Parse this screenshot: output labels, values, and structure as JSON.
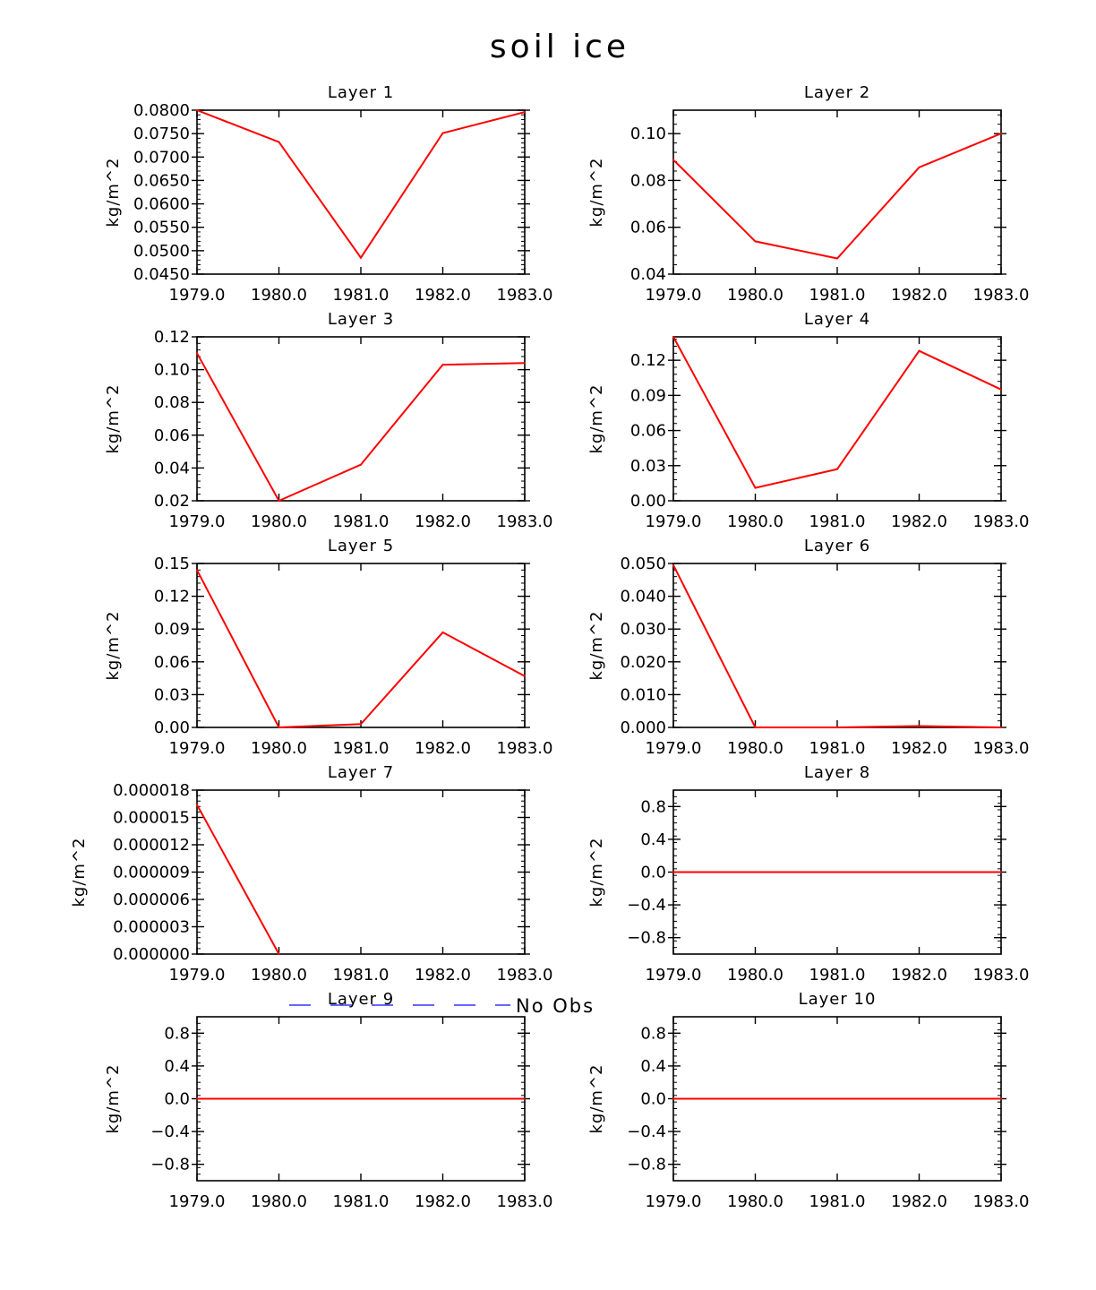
{
  "figure_title": "soil ice",
  "legend": {
    "label": "No Obs",
    "color": "#3333ff"
  },
  "series_color": "#ff0000",
  "chart_data": [
    {
      "type": "line",
      "title": "Layer 1",
      "xlabel": "",
      "ylabel": "kg/m^2",
      "x": [
        1979,
        1980,
        1981,
        1982,
        1983
      ],
      "values": [
        0.08,
        0.0732,
        0.0485,
        0.0751,
        0.0796
      ],
      "xlim": [
        1979,
        1983
      ],
      "ylim": [
        0.045,
        0.08
      ],
      "xticks": [
        "1979.0",
        "1980.0",
        "1981.0",
        "1982.0",
        "1983.0"
      ],
      "yticks": [
        "0.0800",
        "0.0750",
        "0.0700",
        "0.0650",
        "0.0600",
        "0.0550",
        "0.0500",
        "0.0450"
      ],
      "ytick_values": [
        0.08,
        0.075,
        0.07,
        0.065,
        0.06,
        0.055,
        0.05,
        0.045
      ]
    },
    {
      "type": "line",
      "title": "Layer 2",
      "xlabel": "",
      "ylabel": "kg/m^2",
      "x": [
        1979,
        1980,
        1981,
        1982,
        1983
      ],
      "values": [
        0.0888,
        0.054,
        0.0467,
        0.0856,
        0.1
      ],
      "xlim": [
        1979,
        1983
      ],
      "ylim": [
        0.04,
        0.11
      ],
      "xticks": [
        "1979.0",
        "1980.0",
        "1981.0",
        "1982.0",
        "1983.0"
      ],
      "yticks": [
        "0.10",
        "0.08",
        "0.06",
        "0.04"
      ],
      "ytick_values": [
        0.1,
        0.08,
        0.06,
        0.04
      ]
    },
    {
      "type": "line",
      "title": "Layer 3",
      "xlabel": "",
      "ylabel": "kg/m^2",
      "x": [
        1979,
        1980,
        1981,
        1982,
        1983
      ],
      "values": [
        0.11,
        0.02,
        0.042,
        0.103,
        0.104
      ],
      "xlim": [
        1979,
        1983
      ],
      "ylim": [
        0.02,
        0.12
      ],
      "xticks": [
        "1979.0",
        "1980.0",
        "1981.0",
        "1982.0",
        "1983.0"
      ],
      "yticks": [
        "0.12",
        "0.10",
        "0.08",
        "0.06",
        "0.04",
        "0.02"
      ],
      "ytick_values": [
        0.12,
        0.1,
        0.08,
        0.06,
        0.04,
        0.02
      ]
    },
    {
      "type": "line",
      "title": "Layer 4",
      "xlabel": "",
      "ylabel": "kg/m^2",
      "x": [
        1979,
        1980,
        1981,
        1982,
        1983
      ],
      "values": [
        0.14,
        0.011,
        0.027,
        0.128,
        0.095
      ],
      "xlim": [
        1979,
        1983
      ],
      "ylim": [
        0.0,
        0.14
      ],
      "xticks": [
        "1979.0",
        "1980.0",
        "1981.0",
        "1982.0",
        "1983.0"
      ],
      "yticks": [
        "0.12",
        "0.09",
        "0.06",
        "0.03",
        "0.00"
      ],
      "ytick_values": [
        0.12,
        0.09,
        0.06,
        0.03,
        0.0
      ]
    },
    {
      "type": "line",
      "title": "Layer 5",
      "xlabel": "",
      "ylabel": "kg/m^2",
      "x": [
        1979,
        1980,
        1981,
        1982,
        1983
      ],
      "values": [
        0.144,
        0.0,
        0.003,
        0.087,
        0.047
      ],
      "xlim": [
        1979,
        1983
      ],
      "ylim": [
        0.0,
        0.15
      ],
      "xticks": [
        "1979.0",
        "1980.0",
        "1981.0",
        "1982.0",
        "1983.0"
      ],
      "yticks": [
        "0.15",
        "0.12",
        "0.09",
        "0.06",
        "0.03",
        "0.00"
      ],
      "ytick_values": [
        0.15,
        0.12,
        0.09,
        0.06,
        0.03,
        0.0
      ]
    },
    {
      "type": "line",
      "title": "Layer 6",
      "xlabel": "",
      "ylabel": "kg/m^2",
      "x": [
        1979,
        1980,
        1981,
        1982,
        1983
      ],
      "values": [
        0.0495,
        0.0,
        0.0,
        0.0004,
        0.0
      ],
      "xlim": [
        1979,
        1983
      ],
      "ylim": [
        0.0,
        0.05
      ],
      "xticks": [
        "1979.0",
        "1980.0",
        "1981.0",
        "1982.0",
        "1983.0"
      ],
      "yticks": [
        "0.050",
        "0.040",
        "0.030",
        "0.020",
        "0.010",
        "0.000"
      ],
      "ytick_values": [
        0.05,
        0.04,
        0.03,
        0.02,
        0.01,
        0.0
      ]
    },
    {
      "type": "line",
      "title": "Layer 7",
      "xlabel": "",
      "ylabel": "kg/m^2",
      "x": [
        1979,
        1980
      ],
      "values": [
        1.64e-05,
        0.0
      ],
      "xlim": [
        1979,
        1983
      ],
      "ylim": [
        0.0,
        1.8e-05
      ],
      "xticks": [
        "1979.0",
        "1980.0",
        "1981.0",
        "1982.0",
        "1983.0"
      ],
      "yticks": [
        "0.000018",
        "0.000015",
        "0.000012",
        "0.000009",
        "0.000006",
        "0.000003",
        "0.000000"
      ],
      "ytick_values": [
        1.8e-05,
        1.5e-05,
        1.2e-05,
        9e-06,
        6e-06,
        3e-06,
        0.0
      ]
    },
    {
      "type": "line",
      "title": "Layer 8",
      "xlabel": "",
      "ylabel": "kg/m^2",
      "x": [
        1979,
        1980,
        1981,
        1982,
        1983
      ],
      "values": [
        0,
        0,
        0,
        0,
        0
      ],
      "xlim": [
        1979,
        1983
      ],
      "ylim": [
        -1.0,
        1.0
      ],
      "xticks": [
        "1979.0",
        "1980.0",
        "1981.0",
        "1982.0",
        "1983.0"
      ],
      "yticks": [
        "0.8",
        "0.4",
        "0.0",
        "−0.4",
        "−0.8"
      ],
      "ytick_values": [
        0.8,
        0.4,
        0.0,
        -0.4,
        -0.8
      ]
    },
    {
      "type": "line",
      "title": "Layer 9",
      "xlabel": "",
      "ylabel": "kg/m^2",
      "x": [
        1979,
        1980,
        1981,
        1982,
        1983
      ],
      "values": [
        0,
        0,
        0,
        0,
        0
      ],
      "xlim": [
        1979,
        1983
      ],
      "ylim": [
        -1.0,
        1.0
      ],
      "xticks": [
        "1979.0",
        "1980.0",
        "1981.0",
        "1982.0",
        "1983.0"
      ],
      "yticks": [
        "0.8",
        "0.4",
        "0.0",
        "−0.4",
        "−0.8"
      ],
      "ytick_values": [
        0.8,
        0.4,
        0.0,
        -0.4,
        -0.8
      ]
    },
    {
      "type": "line",
      "title": "Layer 10",
      "xlabel": "",
      "ylabel": "kg/m^2",
      "x": [
        1979,
        1980,
        1981,
        1982,
        1983
      ],
      "values": [
        0,
        0,
        0,
        0,
        0
      ],
      "xlim": [
        1979,
        1983
      ],
      "ylim": [
        -1.0,
        1.0
      ],
      "xticks": [
        "1979.0",
        "1980.0",
        "1981.0",
        "1982.0",
        "1983.0"
      ],
      "yticks": [
        "0.8",
        "0.4",
        "0.0",
        "−0.4",
        "−0.8"
      ],
      "ytick_values": [
        0.8,
        0.4,
        0.0,
        -0.4,
        -0.8
      ]
    }
  ]
}
